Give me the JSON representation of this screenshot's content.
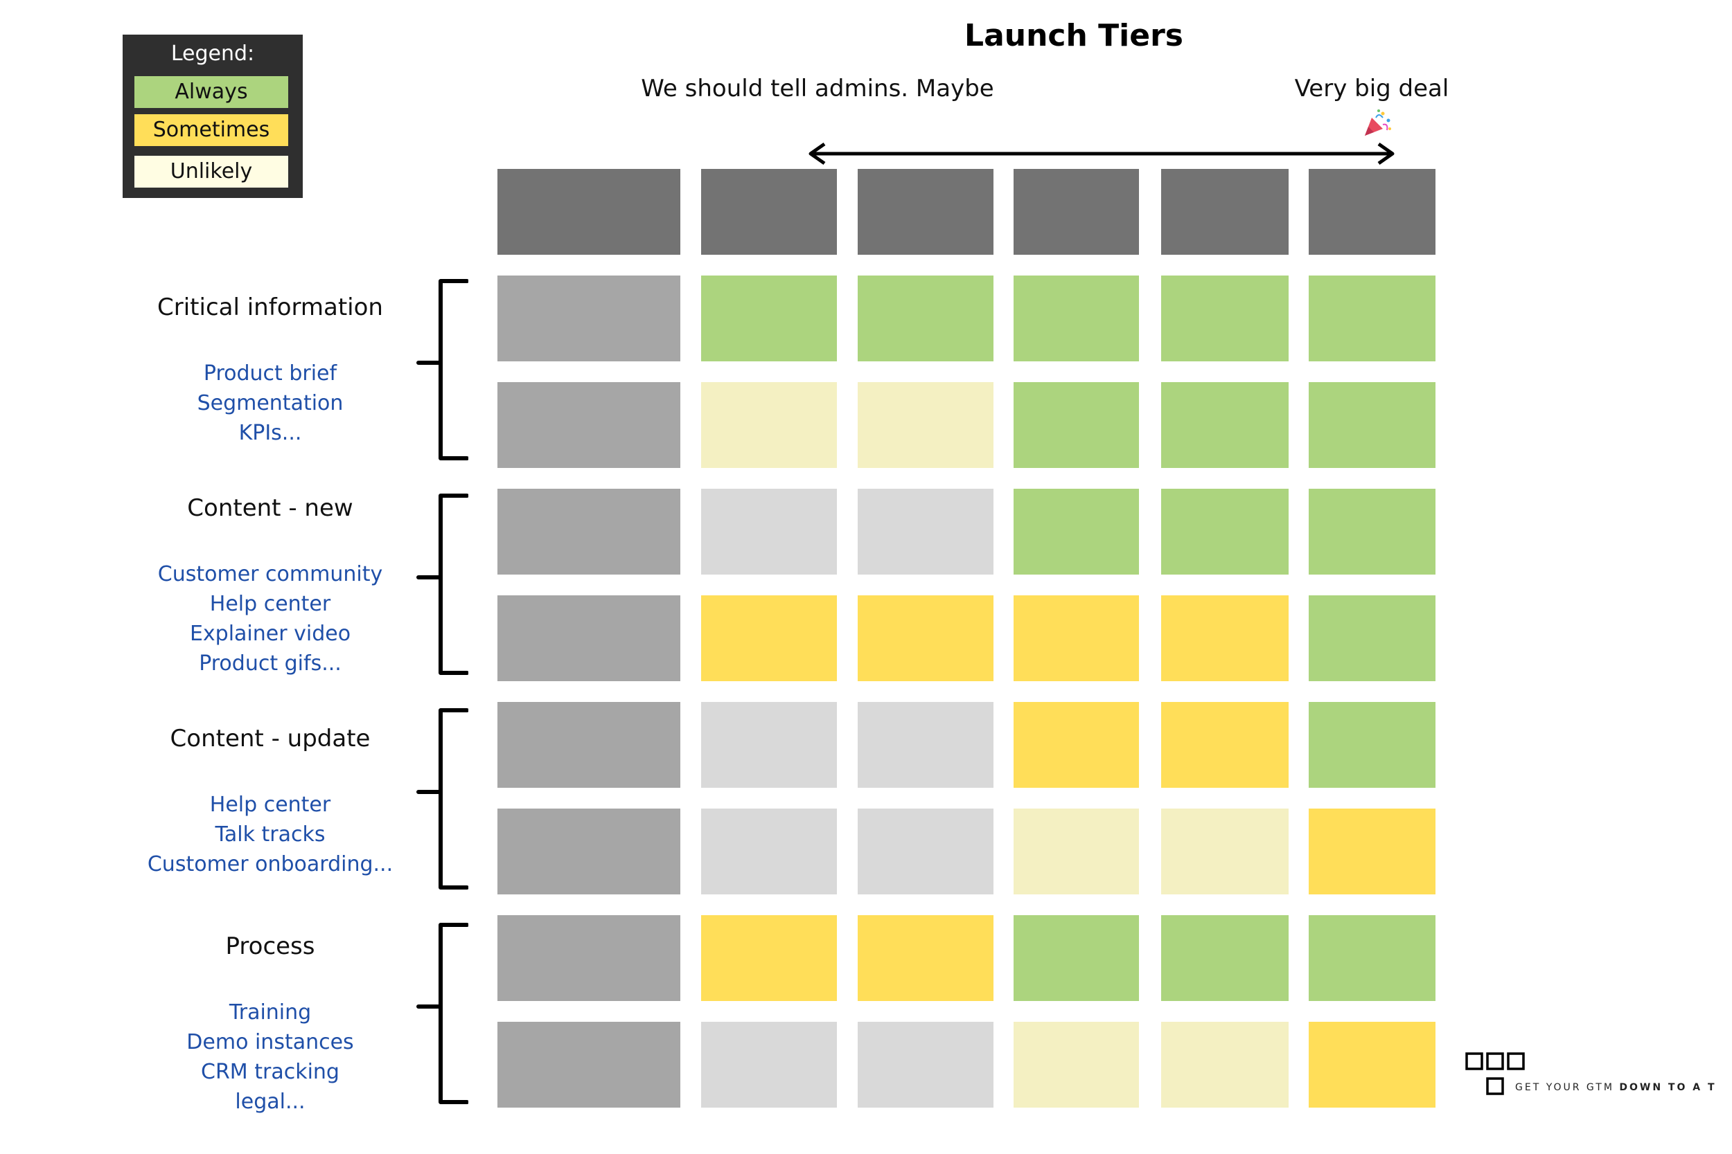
{
  "legend": {
    "title": "Legend:",
    "items": [
      {
        "label": "Always",
        "color": "#acd47e"
      },
      {
        "label": "Sometimes",
        "color": "#ffde59"
      },
      {
        "label": "Unlikely",
        "color": "#fffde3"
      }
    ]
  },
  "header": {
    "title": "Launch Tiers",
    "scale_left": "We should tell admins. Maybe",
    "scale_right": "Very big deal"
  },
  "colors": {
    "header": "#737373",
    "label": "#a6a6a6",
    "empty": "#d9d9d9",
    "always": "#acd47e",
    "sometimes": "#ffde59",
    "unlikely": "#f4f0c2"
  },
  "categories": [
    {
      "title": "Critical information",
      "items": [
        "Product brief",
        "Segmentation",
        "KPIs..."
      ]
    },
    {
      "title": "Content - new",
      "items": [
        "Customer community",
        "Help center",
        "Explainer video",
        "Product gifs..."
      ]
    },
    {
      "title": "Content -  update",
      "items": [
        "Help center",
        "Talk tracks",
        "Customer onboarding..."
      ]
    },
    {
      "title": "Process",
      "items": [
        "Training",
        "Demo instances",
        "CRM tracking",
        "legal..."
      ]
    }
  ],
  "grid": [
    [
      "always",
      "always",
      "always",
      "always",
      "always"
    ],
    [
      "unlikely",
      "unlikely",
      "always",
      "always",
      "always"
    ],
    [
      "empty",
      "empty",
      "always",
      "always",
      "always"
    ],
    [
      "sometimes",
      "sometimes",
      "sometimes",
      "sometimes",
      "always"
    ],
    [
      "empty",
      "empty",
      "sometimes",
      "sometimes",
      "always"
    ],
    [
      "empty",
      "empty",
      "unlikely",
      "unlikely",
      "sometimes"
    ],
    [
      "sometimes",
      "sometimes",
      "always",
      "always",
      "always"
    ],
    [
      "empty",
      "empty",
      "unlikely",
      "unlikely",
      "sometimes"
    ]
  ],
  "logo": {
    "text_light": "GET YOUR GTM ",
    "text_bold": "DOWN TO A T"
  }
}
